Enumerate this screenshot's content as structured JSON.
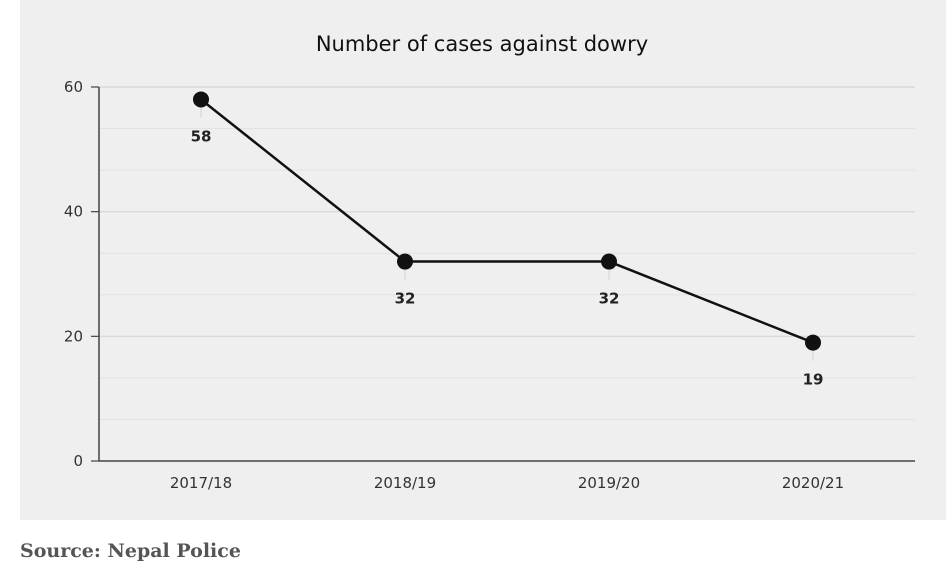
{
  "chart_data": {
    "type": "line",
    "title": "Number of cases against dowry",
    "categories": [
      "2017/18",
      "2018/19",
      "2019/20",
      "2020/21"
    ],
    "series": [
      {
        "values": [
          58,
          32,
          32,
          19
        ],
        "color": "#111111"
      }
    ],
    "data_labels": [
      "58",
      "32",
      "32",
      "19"
    ],
    "ylim": [
      0,
      60
    ],
    "yticks": [
      0,
      20,
      40,
      60
    ],
    "grid": true,
    "legend": "none"
  },
  "source": "Source: Nepal Police"
}
